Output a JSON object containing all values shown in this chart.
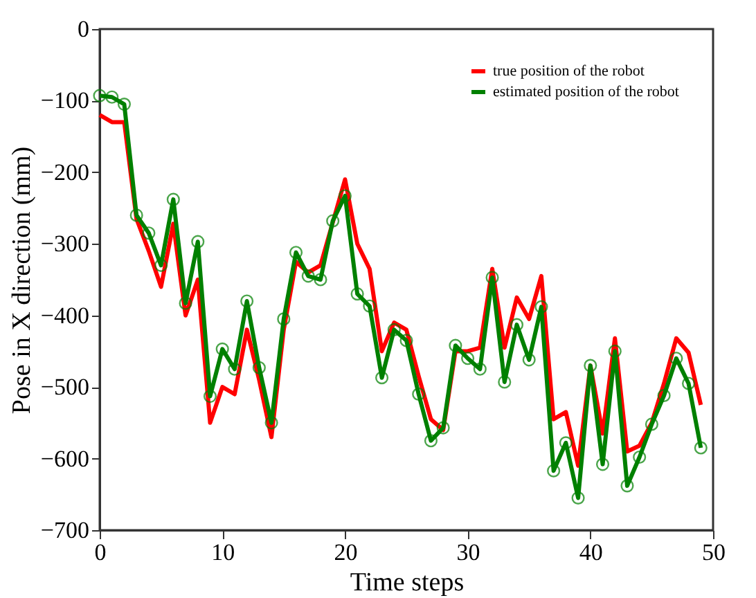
{
  "chart_data": {
    "type": "line",
    "xlabel": "Time steps",
    "ylabel": "Pose in X direction (mm)",
    "x": [
      0,
      1,
      2,
      3,
      4,
      5,
      6,
      7,
      8,
      9,
      10,
      11,
      12,
      13,
      14,
      15,
      16,
      17,
      18,
      19,
      20,
      21,
      22,
      23,
      24,
      25,
      26,
      27,
      28,
      29,
      30,
      31,
      32,
      33,
      34,
      35,
      36,
      37,
      38,
      39,
      40,
      41,
      42,
      43,
      44,
      45,
      46,
      47,
      48,
      49
    ],
    "series": [
      {
        "name": "true position of the robot",
        "color": "#ff0000",
        "marker": "none",
        "values": [
          -120,
          -130,
          -130,
          -265,
          -310,
          -360,
          -272,
          -400,
          -350,
          -550,
          -500,
          -510,
          -420,
          -490,
          -570,
          -420,
          -325,
          -340,
          -330,
          -270,
          -210,
          -300,
          -335,
          -450,
          -410,
          -420,
          -485,
          -545,
          -560,
          -450,
          -450,
          -445,
          -335,
          -445,
          -375,
          -405,
          -345,
          -545,
          -535,
          -610,
          -470,
          -565,
          -432,
          -590,
          -582,
          -550,
          -495,
          -432,
          -452,
          -525
        ]
      },
      {
        "name": "estimated position of the robot",
        "color": "#008000",
        "marker": "circle",
        "values": [
          -93,
          -95,
          -105,
          -260,
          -285,
          -330,
          -238,
          -383,
          -297,
          -513,
          -447,
          -475,
          -380,
          -473,
          -550,
          -405,
          -312,
          -345,
          -350,
          -268,
          -233,
          -370,
          -387,
          -487,
          -420,
          -435,
          -510,
          -575,
          -557,
          -442,
          -460,
          -475,
          -347,
          -493,
          -413,
          -462,
          -388,
          -617,
          -578,
          -655,
          -470,
          -608,
          -450,
          -638,
          -598,
          -552,
          -512,
          -460,
          -495,
          -585
        ]
      }
    ],
    "xlim": [
      0,
      50
    ],
    "xticks": [
      0,
      10,
      20,
      30,
      40,
      50
    ],
    "ylim": [
      -700,
      0
    ],
    "yticks": [
      -700,
      -600,
      -500,
      -400,
      -300,
      -200,
      -100,
      0
    ],
    "grid": false,
    "legend": "top right",
    "line_style": "solid"
  }
}
